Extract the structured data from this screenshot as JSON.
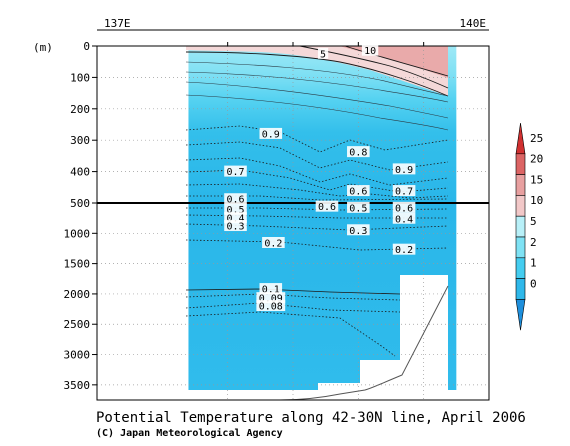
{
  "chart_data": {
    "type": "heatmap",
    "title": "Potential Temperature along 42-30N line, April 2006",
    "credit": "(C) Japan Meteorological Agency",
    "xlabel": "",
    "ylabel": "(m)",
    "xlim": [
      137,
      140
    ],
    "x_ticks": [
      {
        "value": 137,
        "label": "137E"
      },
      {
        "value": 140,
        "label": "140E"
      }
    ],
    "y_ticks_upper": [
      {
        "value": 0,
        "label": "0"
      },
      {
        "value": 100,
        "label": "100"
      },
      {
        "value": 200,
        "label": "200"
      },
      {
        "value": 300,
        "label": "300"
      },
      {
        "value": 400,
        "label": "400"
      },
      {
        "value": 500,
        "label": "500"
      }
    ],
    "y_ticks_lower": [
      {
        "value": 1000,
        "label": "1000"
      },
      {
        "value": 1500,
        "label": "1500"
      },
      {
        "value": 2000,
        "label": "2000"
      },
      {
        "value": 2500,
        "label": "2500"
      },
      {
        "value": 3000,
        "label": "3000"
      },
      {
        "value": 3500,
        "label": "3500"
      }
    ],
    "depth_break": 500,
    "upper_ylim": [
      0,
      500
    ],
    "lower_ylim": [
      500,
      3750
    ],
    "data_xrange": [
      137.7,
      139.75
    ],
    "grid": true,
    "legend": "right",
    "colorbar": [
      {
        "label": "0",
        "color": "#1e8fdc"
      },
      {
        "label": "1",
        "color": "#2fb8ea"
      },
      {
        "label": "2",
        "color": "#45cdf0"
      },
      {
        "label": "5",
        "color": "#7fe2f4"
      },
      {
        "label": "10",
        "color": "#b8f0f8"
      },
      {
        "label": "15",
        "color": "#f2c8c8"
      },
      {
        "label": "20",
        "color": "#e8a0a0"
      },
      {
        "label": "25",
        "color": "#dc6464"
      },
      {
        "label": "",
        "color": "#d03030"
      }
    ],
    "contour_labels": [
      {
        "text": "5",
        "x": 138.73,
        "depth": 25,
        "style": "solid"
      },
      {
        "text": "10",
        "x": 139.09,
        "depth": 15,
        "style": "solid"
      },
      {
        "text": "0.9",
        "x": 138.33,
        "depth": 280,
        "style": "dotted"
      },
      {
        "text": "0.8",
        "x": 139.0,
        "depth": 338,
        "style": "dotted"
      },
      {
        "text": "0.9",
        "x": 139.35,
        "depth": 393,
        "style": "dotted"
      },
      {
        "text": "0.7",
        "x": 138.06,
        "depth": 400,
        "style": "dotted"
      },
      {
        "text": "0.6",
        "x": 139.0,
        "depth": 462,
        "style": "dotted"
      },
      {
        "text": "0.7",
        "x": 139.35,
        "depth": 462,
        "style": "dotted"
      },
      {
        "text": "0.6",
        "x": 138.06,
        "depth": 488,
        "style": "dotted"
      },
      {
        "text": "0.5",
        "x": 138.06,
        "depth": 610,
        "style": "dotted"
      },
      {
        "text": "0.6",
        "x": 138.76,
        "depth": 560,
        "style": "dotted"
      },
      {
        "text": "0.5",
        "x": 139.0,
        "depth": 580,
        "style": "dotted"
      },
      {
        "text": "0.6",
        "x": 139.35,
        "depth": 580,
        "style": "dotted"
      },
      {
        "text": "0.4",
        "x": 138.06,
        "depth": 750,
        "style": "dotted"
      },
      {
        "text": "0.4",
        "x": 139.35,
        "depth": 760,
        "style": "dotted"
      },
      {
        "text": "0.3",
        "x": 138.06,
        "depth": 880,
        "style": "dotted"
      },
      {
        "text": "0.3",
        "x": 139.0,
        "depth": 950,
        "style": "dotted"
      },
      {
        "text": "0.2",
        "x": 138.35,
        "depth": 1160,
        "style": "dotted"
      },
      {
        "text": "0.2",
        "x": 139.35,
        "depth": 1270,
        "style": "dotted"
      },
      {
        "text": "0.1",
        "x": 138.33,
        "depth": 1920,
        "style": "solid"
      },
      {
        "text": "0.09",
        "x": 138.33,
        "depth": 2070,
        "style": "dotted"
      },
      {
        "text": "0.08",
        "x": 138.33,
        "depth": 2200,
        "style": "dotted"
      }
    ]
  }
}
